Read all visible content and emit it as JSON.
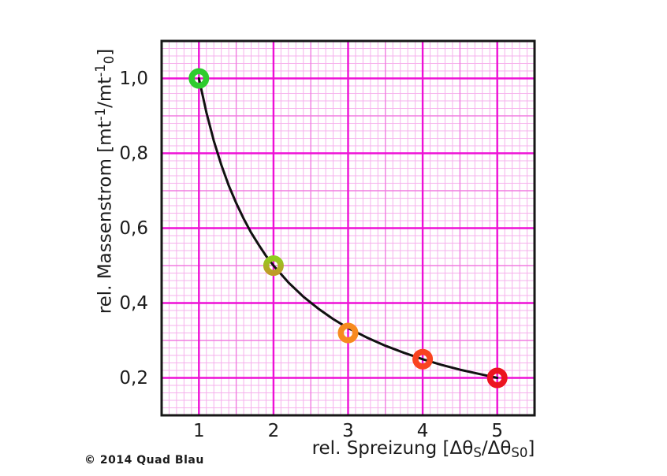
{
  "page": {
    "background": "#ffffff",
    "copyright": "© 2014 Quad Blau"
  },
  "chart_data": {
    "type": "line",
    "title": "",
    "xlabel_segments": [
      {
        "t": "rel. Spreizung ["
      },
      {
        "t": "Δθ"
      },
      {
        "t": "S",
        "s": "sub"
      },
      {
        "t": "/Δθ"
      },
      {
        "t": "S0",
        "s": "sub"
      },
      {
        "t": "]"
      }
    ],
    "ylabel_segments": [
      {
        "t": "rel. Massenstrom [mt"
      },
      {
        "t": "-1",
        "s": "sup"
      },
      {
        "t": "/mt"
      },
      {
        "t": "-1",
        "s": "sup"
      },
      {
        "t": "0",
        "s": "sub"
      },
      {
        "t": "]"
      }
    ],
    "xlim": [
      0.5,
      5.5
    ],
    "ylim": [
      0.1,
      1.1
    ],
    "x_ticks": [
      {
        "value": 1,
        "label": "1"
      },
      {
        "value": 2,
        "label": "2"
      },
      {
        "value": 3,
        "label": "3"
      },
      {
        "value": 4,
        "label": "4"
      },
      {
        "value": 5,
        "label": "5"
      }
    ],
    "y_ticks": [
      {
        "value": 1.0,
        "label": "1,0"
      },
      {
        "value": 0.8,
        "label": "0,8"
      },
      {
        "value": 0.6,
        "label": "0,6"
      },
      {
        "value": 0.4,
        "label": "0,4"
      },
      {
        "value": 0.2,
        "label": "0,2"
      }
    ],
    "grid": {
      "minor_step_x": 0.1,
      "medium_step_x": 0.5,
      "major_step_x": 1.0,
      "minor_step_y": 0.02,
      "medium_step_y": 0.1,
      "major_step_y": 0.2,
      "minor_color": "#f6b0ec",
      "medium_color": "#f07ce0",
      "major_color": "#ee10d6"
    },
    "curve": {
      "color": "#111111",
      "width": 3,
      "points": [
        [
          1.0,
          1.0
        ],
        [
          1.1,
          0.909
        ],
        [
          1.2,
          0.833
        ],
        [
          1.3,
          0.769
        ],
        [
          1.4,
          0.714
        ],
        [
          1.5,
          0.667
        ],
        [
          1.6,
          0.625
        ],
        [
          1.7,
          0.588
        ],
        [
          1.8,
          0.556
        ],
        [
          1.9,
          0.526
        ],
        [
          2.0,
          0.5
        ],
        [
          2.2,
          0.455
        ],
        [
          2.4,
          0.417
        ],
        [
          2.6,
          0.385
        ],
        [
          2.8,
          0.357
        ],
        [
          3.0,
          0.333
        ],
        [
          3.25,
          0.308
        ],
        [
          3.5,
          0.286
        ],
        [
          3.75,
          0.267
        ],
        [
          4.0,
          0.25
        ],
        [
          4.25,
          0.235
        ],
        [
          4.5,
          0.222
        ],
        [
          4.75,
          0.211
        ],
        [
          5.0,
          0.2
        ]
      ]
    },
    "points": [
      {
        "x": 1,
        "y": 1.0,
        "color": "#2ecc2e"
      },
      {
        "x": 2,
        "y": 0.5,
        "color": "#90cc20",
        "color2": "#c09a28"
      },
      {
        "x": 3,
        "y": 0.32,
        "color": "#f78a1e"
      },
      {
        "x": 4,
        "y": 0.25,
        "color": "#f9431f"
      },
      {
        "x": 5,
        "y": 0.2,
        "color": "#ec1420"
      }
    ]
  }
}
